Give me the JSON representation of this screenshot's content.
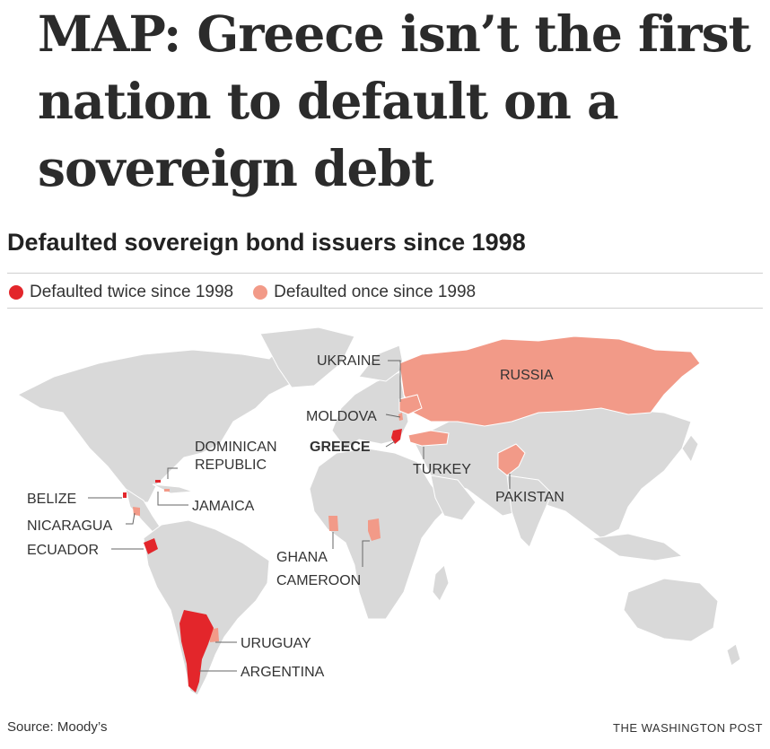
{
  "headline": "MAP: Greece isn’t the first nation to default on a sovereign debt",
  "map": {
    "title": "Defaulted sovereign bond issuers since 1998",
    "legend": [
      {
        "label": "Defaulted twice since 1998",
        "color": "#e3262b"
      },
      {
        "label": "Defaulted once since 1998",
        "color": "#f29a88"
      }
    ],
    "base_land_color": "#d9d9d9",
    "countries": {
      "ukraine": "UKRAINE",
      "russia": "RUSSIA",
      "moldova": "MOLDOVA",
      "greece": "GREECE",
      "dominican_republic_line1": "DOMINICAN",
      "dominican_republic_line2": "REPUBLIC",
      "turkey": "TURKEY",
      "pakistan": "PAKISTAN",
      "belize": "BELIZE",
      "jamaica": "JAMAICA",
      "nicaragua": "NICARAGUA",
      "ecuador": "ECUADOR",
      "ghana": "GHANA",
      "cameroon": "CAMEROON",
      "uruguay": "URUGUAY",
      "argentina": "ARGENTINA"
    }
  },
  "footer": {
    "source": "Source: Moody’s",
    "credit": "THE WASHINGTON POST"
  }
}
